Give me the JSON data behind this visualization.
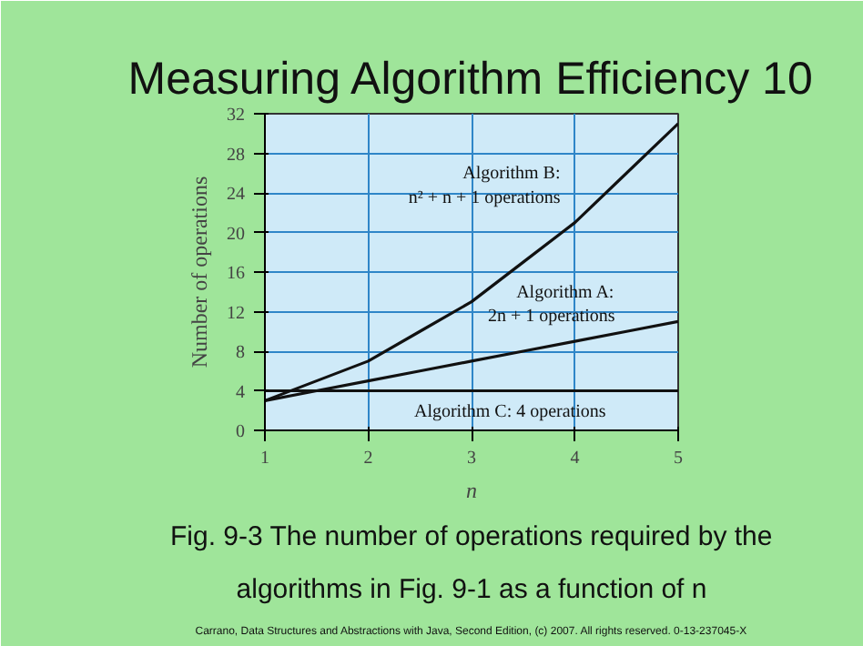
{
  "chart_data": {
    "type": "line",
    "title": "Measuring Algorithm Efficiency 10",
    "xlabel": "n",
    "ylabel": "Number of operations",
    "x": [
      1,
      1.5,
      2,
      2.5,
      3,
      3.5,
      4,
      4.5,
      5
    ],
    "series": [
      {
        "name": "Algorithm B:\nn² + n + 1 operations",
        "color": "#111111",
        "values": [
          3,
          5,
          7,
          10,
          13,
          17,
          21,
          26,
          31
        ]
      },
      {
        "name": "Algorithm A:\n2n + 1 operations",
        "color": "#111111",
        "values": [
          3,
          4,
          5,
          6,
          7,
          8,
          9,
          10,
          11
        ]
      },
      {
        "name": "Algorithm C: 4 operations",
        "color": "#111111",
        "values": [
          4,
          4,
          4,
          4,
          4,
          4,
          4,
          4,
          4
        ]
      }
    ],
    "xlim": [
      1,
      5
    ],
    "ylim": [
      0,
      32
    ],
    "xticks": [
      1,
      2,
      3,
      4,
      5
    ],
    "yticks": [
      0,
      4,
      8,
      12,
      16,
      20,
      24,
      28,
      32
    ],
    "grid": true,
    "marker": "none",
    "line_style": "solid",
    "annotations": [
      "Fig. 9-3 The number of operations required by the algorithms in Fig. 9-1 as a function of n",
      "Carrano, Data Structures and Abstractions with Java, Second Edition, (c) 2007. All rights reserved. 0-13-237045-X"
    ]
  }
}
